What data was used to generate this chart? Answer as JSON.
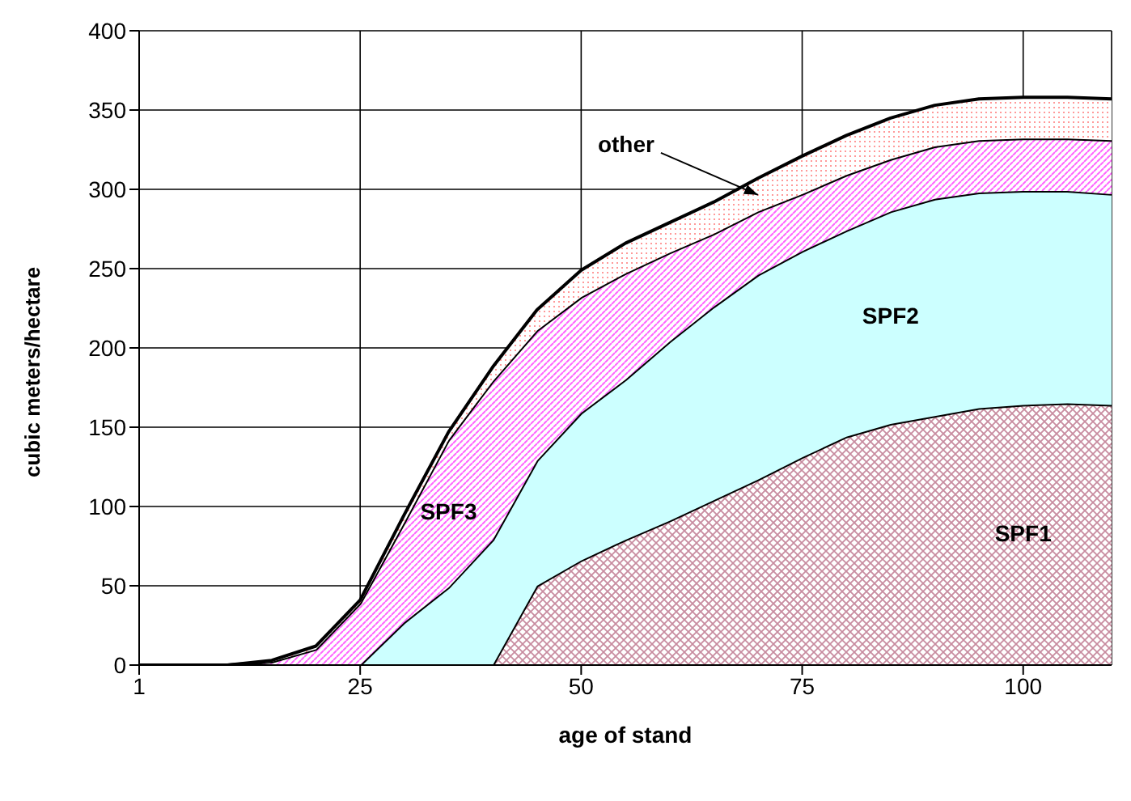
{
  "chart_data": {
    "type": "area",
    "stacked": true,
    "xlabel": "age of stand",
    "ylabel": "cubic meters/hectare",
    "categories": [
      "1",
      null,
      null,
      null,
      null,
      "25",
      null,
      null,
      null,
      null,
      "50",
      null,
      null,
      null,
      null,
      "75",
      null,
      null,
      null,
      null,
      "100",
      null,
      null
    ],
    "series": [
      {
        "name": "SPF1",
        "color": "#c88ca0",
        "values": [
          0,
          0,
          0,
          0,
          0,
          0,
          0,
          0,
          0,
          50,
          66,
          79,
          91,
          104,
          117,
          131,
          144,
          152,
          157,
          162,
          164,
          165,
          164
        ]
      },
      {
        "name": "SPF2",
        "color": "#ccffff",
        "values": [
          0,
          0,
          0,
          0,
          0,
          0,
          27,
          49,
          79,
          79,
          93,
          101,
          113,
          122,
          129,
          130,
          130,
          134,
          137,
          136,
          135,
          134,
          133
        ]
      },
      {
        "name": "SPF3",
        "color": "#ff66ff",
        "values": [
          0,
          0,
          0,
          2,
          10,
          39,
          63,
          93,
          100,
          82,
          73,
          67,
          56,
          46,
          40,
          36,
          35,
          33,
          33,
          33,
          33,
          33,
          34
        ]
      },
      {
        "name": "other",
        "color": "#ff9999",
        "values": [
          0,
          0,
          0,
          1,
          2,
          2,
          5,
          5,
          9,
          13,
          17,
          19,
          19,
          20,
          21,
          24,
          25,
          26,
          26,
          26,
          26,
          26,
          26
        ]
      }
    ],
    "ylim": [
      0,
      400
    ],
    "yticks": [
      0,
      50,
      100,
      150,
      200,
      250,
      300,
      350,
      400
    ],
    "grid": true,
    "legend": false,
    "marker": "none",
    "line_style": "solid"
  }
}
